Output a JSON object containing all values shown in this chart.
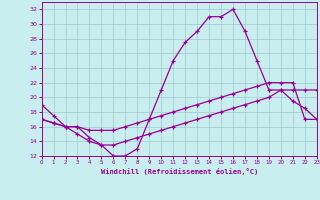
{
  "xlabel": "Windchill (Refroidissement éolien,°C)",
  "xlim": [
    0,
    23
  ],
  "ylim": [
    12,
    33
  ],
  "yticks": [
    12,
    14,
    16,
    18,
    20,
    22,
    24,
    26,
    28,
    30,
    32
  ],
  "xticks": [
    0,
    1,
    2,
    3,
    4,
    5,
    6,
    7,
    8,
    9,
    10,
    11,
    12,
    13,
    14,
    15,
    16,
    17,
    18,
    19,
    20,
    21,
    22,
    23
  ],
  "bg_color": "#c8eef0",
  "line_color": "#990099",
  "grid_color": "#a0c8cc",
  "line1_x": [
    0,
    1,
    2,
    3,
    4,
    5,
    6,
    7,
    8,
    9,
    10,
    11,
    12,
    13,
    14,
    15,
    16,
    17,
    18,
    19,
    20,
    21,
    22,
    23
  ],
  "line1_y": [
    19.0,
    17.5,
    16.0,
    16.0,
    14.5,
    13.5,
    12.0,
    12.0,
    13.0,
    17.0,
    21.0,
    25.0,
    27.5,
    29.0,
    31.0,
    31.0,
    32.0,
    29.0,
    25.0,
    21.0,
    21.0,
    19.5,
    18.5,
    17.0
  ],
  "line2_x": [
    0,
    1,
    2,
    3,
    4,
    5,
    6,
    7,
    8,
    9,
    10,
    11,
    12,
    13,
    14,
    15,
    16,
    17,
    18,
    19,
    20,
    21,
    22,
    23
  ],
  "line2_y": [
    17.0,
    16.5,
    16.0,
    16.0,
    15.5,
    15.5,
    15.5,
    16.0,
    16.5,
    17.0,
    17.5,
    18.0,
    18.5,
    19.0,
    19.5,
    20.0,
    20.5,
    21.0,
    21.5,
    22.0,
    22.0,
    22.0,
    17.0,
    17.0
  ],
  "line3_x": [
    0,
    1,
    2,
    3,
    4,
    5,
    6,
    7,
    8,
    9,
    10,
    11,
    12,
    13,
    14,
    15,
    16,
    17,
    18,
    19,
    20,
    21,
    22,
    23
  ],
  "line3_y": [
    17.0,
    16.5,
    16.0,
    15.0,
    14.0,
    13.5,
    13.5,
    14.0,
    14.5,
    15.0,
    15.5,
    16.0,
    16.5,
    17.0,
    17.5,
    18.0,
    18.5,
    19.0,
    19.5,
    20.0,
    21.0,
    21.0,
    21.0,
    21.0
  ]
}
